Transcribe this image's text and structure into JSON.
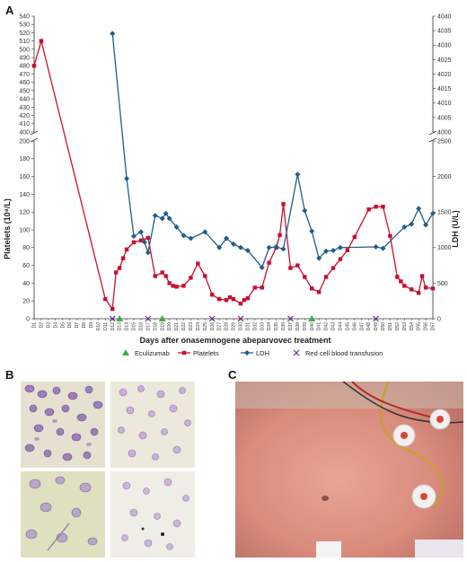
{
  "panels": {
    "a": "A",
    "b": "B",
    "c": "C"
  },
  "chart_data": {
    "type": "line",
    "xlabel": "Days after onasemnogene abeparvovec treatment",
    "ylabel_left": "Platelets (10⁹/L)",
    "ylabel_right": "LDH (U/L)",
    "x_start": 1,
    "x_end": 57,
    "x_ticks": [
      "D1",
      "D2",
      "D3",
      "D4",
      "D5",
      "D6",
      "D7",
      "D8",
      "D9",
      "D10",
      "D11",
      "D12",
      "D13",
      "D14",
      "D15",
      "D16",
      "D17",
      "D18",
      "D19",
      "D20",
      "D21",
      "D22",
      "D23",
      "D24",
      "D25",
      "D26",
      "D27",
      "D28",
      "D29",
      "D30",
      "D31",
      "D32",
      "D33",
      "D34",
      "D35",
      "D36",
      "D37",
      "D38",
      "D39",
      "D40",
      "D41",
      "D42",
      "D43",
      "D44",
      "D45",
      "D46",
      "D47",
      "D48",
      "D49",
      "D50",
      "D51",
      "D52",
      "D53",
      "D54",
      "D55",
      "D56",
      "D57"
    ],
    "left_axis": {
      "lower_ticks": [
        "0",
        "20",
        "40",
        "60",
        "80",
        "100",
        "120",
        "140",
        "160",
        "180",
        "200"
      ],
      "upper_ticks": [
        "400",
        "410",
        "420",
        "430",
        "440",
        "450",
        "460",
        "470",
        "480",
        "490",
        "500",
        "510",
        "520",
        "530",
        "540"
      ],
      "lower_range": [
        0,
        200
      ],
      "upper_range": [
        400,
        540
      ]
    },
    "right_axis": {
      "lower_ticks": [
        "0",
        "500",
        "1000",
        "1500",
        "2000",
        "2500"
      ],
      "upper_ticks": [
        "4000",
        "4005",
        "4010",
        "4015",
        "4020",
        "4025",
        "4030",
        "4035",
        "4040"
      ],
      "lower_range": [
        0,
        2500
      ],
      "upper_range": [
        4000,
        4040
      ]
    },
    "series": [
      {
        "name": "Platelets",
        "color": "#c8102e",
        "axis": "left",
        "x": [
          1,
          2,
          11,
          12,
          12.5,
          13,
          13.5,
          14,
          15,
          16,
          17,
          18,
          19,
          19.5,
          20,
          20.5,
          21,
          22,
          23,
          24,
          25,
          26,
          27,
          28,
          28.5,
          29,
          30,
          30.5,
          31,
          32,
          33,
          34,
          35,
          35.5,
          36,
          37,
          38,
          39,
          40,
          41,
          42,
          43,
          44,
          45,
          46,
          48,
          49,
          50,
          51,
          52,
          52.5,
          53,
          54,
          55,
          55.5,
          56,
          57
        ],
        "y": [
          480,
          510,
          22,
          11,
          52,
          57,
          68,
          78,
          86,
          88,
          91,
          48,
          52,
          48,
          40,
          37,
          36,
          37,
          46,
          62,
          48,
          27,
          22,
          21,
          24,
          22,
          17,
          21,
          23,
          35,
          35,
          63,
          80,
          94,
          129,
          57,
          60,
          47,
          34,
          30,
          47,
          57,
          67,
          77,
          92,
          123,
          126,
          126,
          93,
          47,
          42,
          37,
          33,
          29,
          48,
          35,
          34
        ]
      },
      {
        "name": "LDH",
        "color": "#1f5d8c",
        "axis": "right",
        "x": [
          12,
          14,
          15,
          16,
          16.5,
          17,
          18,
          19,
          19.5,
          20,
          21,
          22,
          23,
          25,
          27,
          28,
          29,
          30,
          31,
          33,
          34,
          35,
          36,
          38,
          39,
          40,
          41,
          42,
          43,
          44,
          49,
          50,
          53,
          54,
          55,
          56,
          57
        ],
        "y": [
          4034,
          1970,
          1160,
          1220,
          1080,
          930,
          1450,
          1410,
          1480,
          1410,
          1290,
          1170,
          1130,
          1220,
          1000,
          1130,
          1050,
          1000,
          960,
          720,
          1000,
          1010,
          980,
          2030,
          1520,
          1230,
          850,
          950,
          960,
          1000,
          1010,
          990,
          1290,
          1330,
          1550,
          1320,
          1480
        ]
      }
    ],
    "markers": [
      {
        "name": "Eculizumab",
        "symbol": "triangle",
        "color": "#3cb043",
        "x": [
          13,
          19,
          40
        ]
      },
      {
        "name": "Red cell blood transfusion",
        "symbol": "x",
        "color": "#6a2c91",
        "x": [
          12,
          17,
          26,
          30,
          37,
          49
        ]
      }
    ],
    "legend": [
      "Eculizumab",
      "Platelets",
      "LDH",
      "Red cell blood transfusion"
    ]
  }
}
